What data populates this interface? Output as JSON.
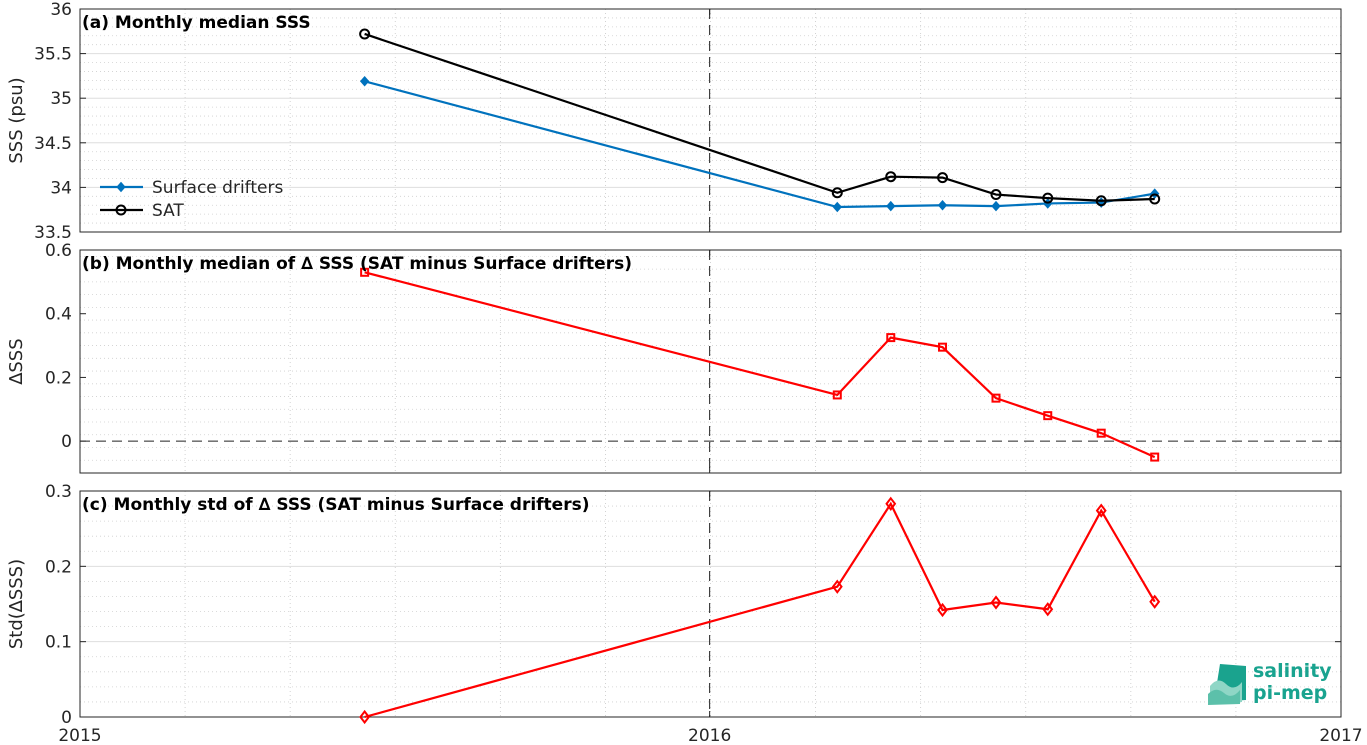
{
  "chart_data": [
    {
      "type": "line",
      "title": "(a) Monthly median SSS",
      "ylabel": "SSS (psu)",
      "xlim": [
        "2015-01-01",
        "2017-01-01"
      ],
      "xticks": [
        "2015",
        "2016",
        "2017"
      ],
      "ylim": [
        33.5,
        36
      ],
      "yticks": [
        "33.5",
        "34",
        "34.5",
        "35",
        "35.5",
        "36"
      ],
      "grid": true,
      "legend_position": "left",
      "x": [
        "2015-06-15",
        "2016-03-15",
        "2016-04-15",
        "2016-05-15",
        "2016-06-15",
        "2016-07-15",
        "2016-08-15",
        "2016-09-15"
      ],
      "series": [
        {
          "name": "Surface drifters",
          "color": "#0072bd",
          "marker": "diamond-filled",
          "values": [
            35.19,
            33.78,
            33.79,
            33.8,
            33.79,
            33.82,
            33.83,
            33.93
          ]
        },
        {
          "name": "SAT",
          "color": "#000000",
          "marker": "circle-open",
          "values": [
            35.72,
            33.94,
            34.12,
            34.11,
            33.92,
            33.88,
            33.85,
            33.87
          ]
        }
      ]
    },
    {
      "type": "line",
      "title": "(b) Monthly median of ∆ SSS (SAT minus Surface drifters)",
      "ylabel": "∆SSS",
      "xlim": [
        "2015-01-01",
        "2017-01-01"
      ],
      "ylim": [
        -0.1,
        0.6
      ],
      "yticks": [
        "0",
        "0.2",
        "0.4",
        "0.6"
      ],
      "grid": true,
      "reference_line": 0,
      "x": [
        "2015-06-15",
        "2016-03-15",
        "2016-04-15",
        "2016-05-15",
        "2016-06-15",
        "2016-07-15",
        "2016-08-15",
        "2016-09-15"
      ],
      "series": [
        {
          "color": "#ff0000",
          "marker": "square-open",
          "values": [
            0.53,
            0.145,
            0.325,
            0.295,
            0.135,
            0.08,
            0.025,
            -0.05
          ]
        }
      ]
    },
    {
      "type": "line",
      "title": "(c) Monthly std of ∆ SSS (SAT minus Surface drifters)",
      "ylabel": "Std(∆SSS)",
      "xlim": [
        "2015-01-01",
        "2017-01-01"
      ],
      "ylim": [
        0,
        0.3
      ],
      "yticks": [
        "0",
        "0.1",
        "0.2",
        "0.3"
      ],
      "grid": true,
      "x": [
        "2015-06-15",
        "2016-03-15",
        "2016-04-15",
        "2016-05-15",
        "2016-06-15",
        "2016-07-15",
        "2016-08-15",
        "2016-09-15"
      ],
      "series": [
        {
          "color": "#ff0000",
          "marker": "diamond-open",
          "values": [
            0.0,
            0.173,
            0.283,
            0.142,
            0.152,
            0.143,
            0.274,
            0.153
          ]
        }
      ]
    }
  ],
  "logo": {
    "line1": "salinity",
    "line2": "pi-mep"
  }
}
